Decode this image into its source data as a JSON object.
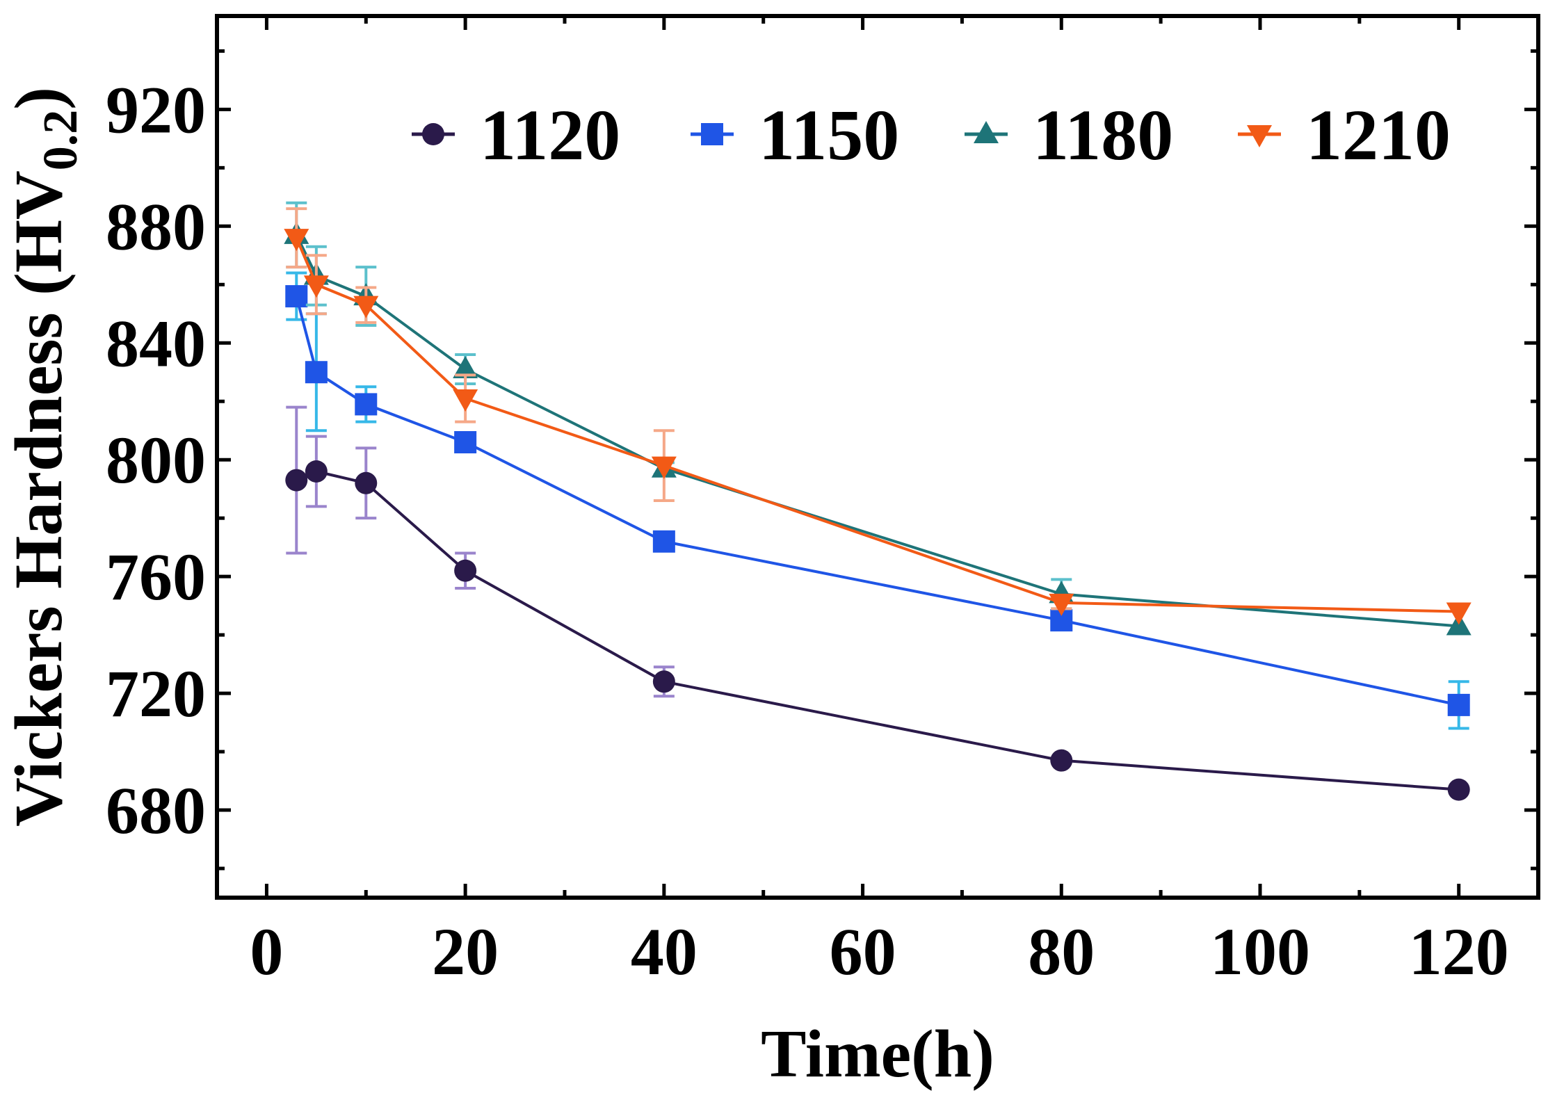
{
  "chart_data": {
    "type": "line",
    "title": "",
    "xlabel": "Time(h)",
    "ylabel_main": "Vickers Hardness (HV",
    "ylabel_sub": "0.2",
    "ylabel_close": ")",
    "xlim": [
      -5,
      128
    ],
    "ylim": [
      650,
      952
    ],
    "xticks": [
      0,
      20,
      40,
      60,
      80,
      100,
      120
    ],
    "yticks": [
      680,
      720,
      760,
      800,
      840,
      880,
      920
    ],
    "xtick_labels": [
      "0",
      "20",
      "40",
      "60",
      "80",
      "100",
      "120"
    ],
    "ytick_labels": [
      "680",
      "720",
      "760",
      "800",
      "840",
      "880",
      "920"
    ],
    "x": [
      3,
      5,
      10,
      20,
      40,
      80,
      120
    ],
    "legend_position": "top-right",
    "series": [
      {
        "name": "1120",
        "marker": "circle",
        "color": "#2a1a4a",
        "error_color": "#9a84cc",
        "values": [
          793,
          796,
          792,
          762,
          724,
          697,
          687
        ],
        "errors": [
          25,
          12,
          12,
          6,
          5,
          0,
          0
        ]
      },
      {
        "name": "1150",
        "marker": "square",
        "color": "#1f55e6",
        "error_color": "#36b8e8",
        "values": [
          856,
          830,
          819,
          806,
          772,
          745,
          716
        ],
        "errors": [
          8,
          20,
          6,
          3,
          2,
          2,
          8
        ]
      },
      {
        "name": "1180",
        "marker": "triangle-up",
        "color": "#1e7478",
        "error_color": "#5cc0cc",
        "values": [
          877,
          863,
          856,
          831,
          797,
          754,
          743
        ],
        "errors": [
          11,
          10,
          10,
          5,
          2,
          5,
          0
        ]
      },
      {
        "name": "1210",
        "marker": "triangle-down",
        "color": "#f25a16",
        "error_color": "#f5a888",
        "values": [
          876,
          860,
          853,
          821,
          798,
          751,
          748
        ],
        "errors": [
          10,
          10,
          6,
          8,
          12,
          2,
          0
        ]
      }
    ]
  }
}
